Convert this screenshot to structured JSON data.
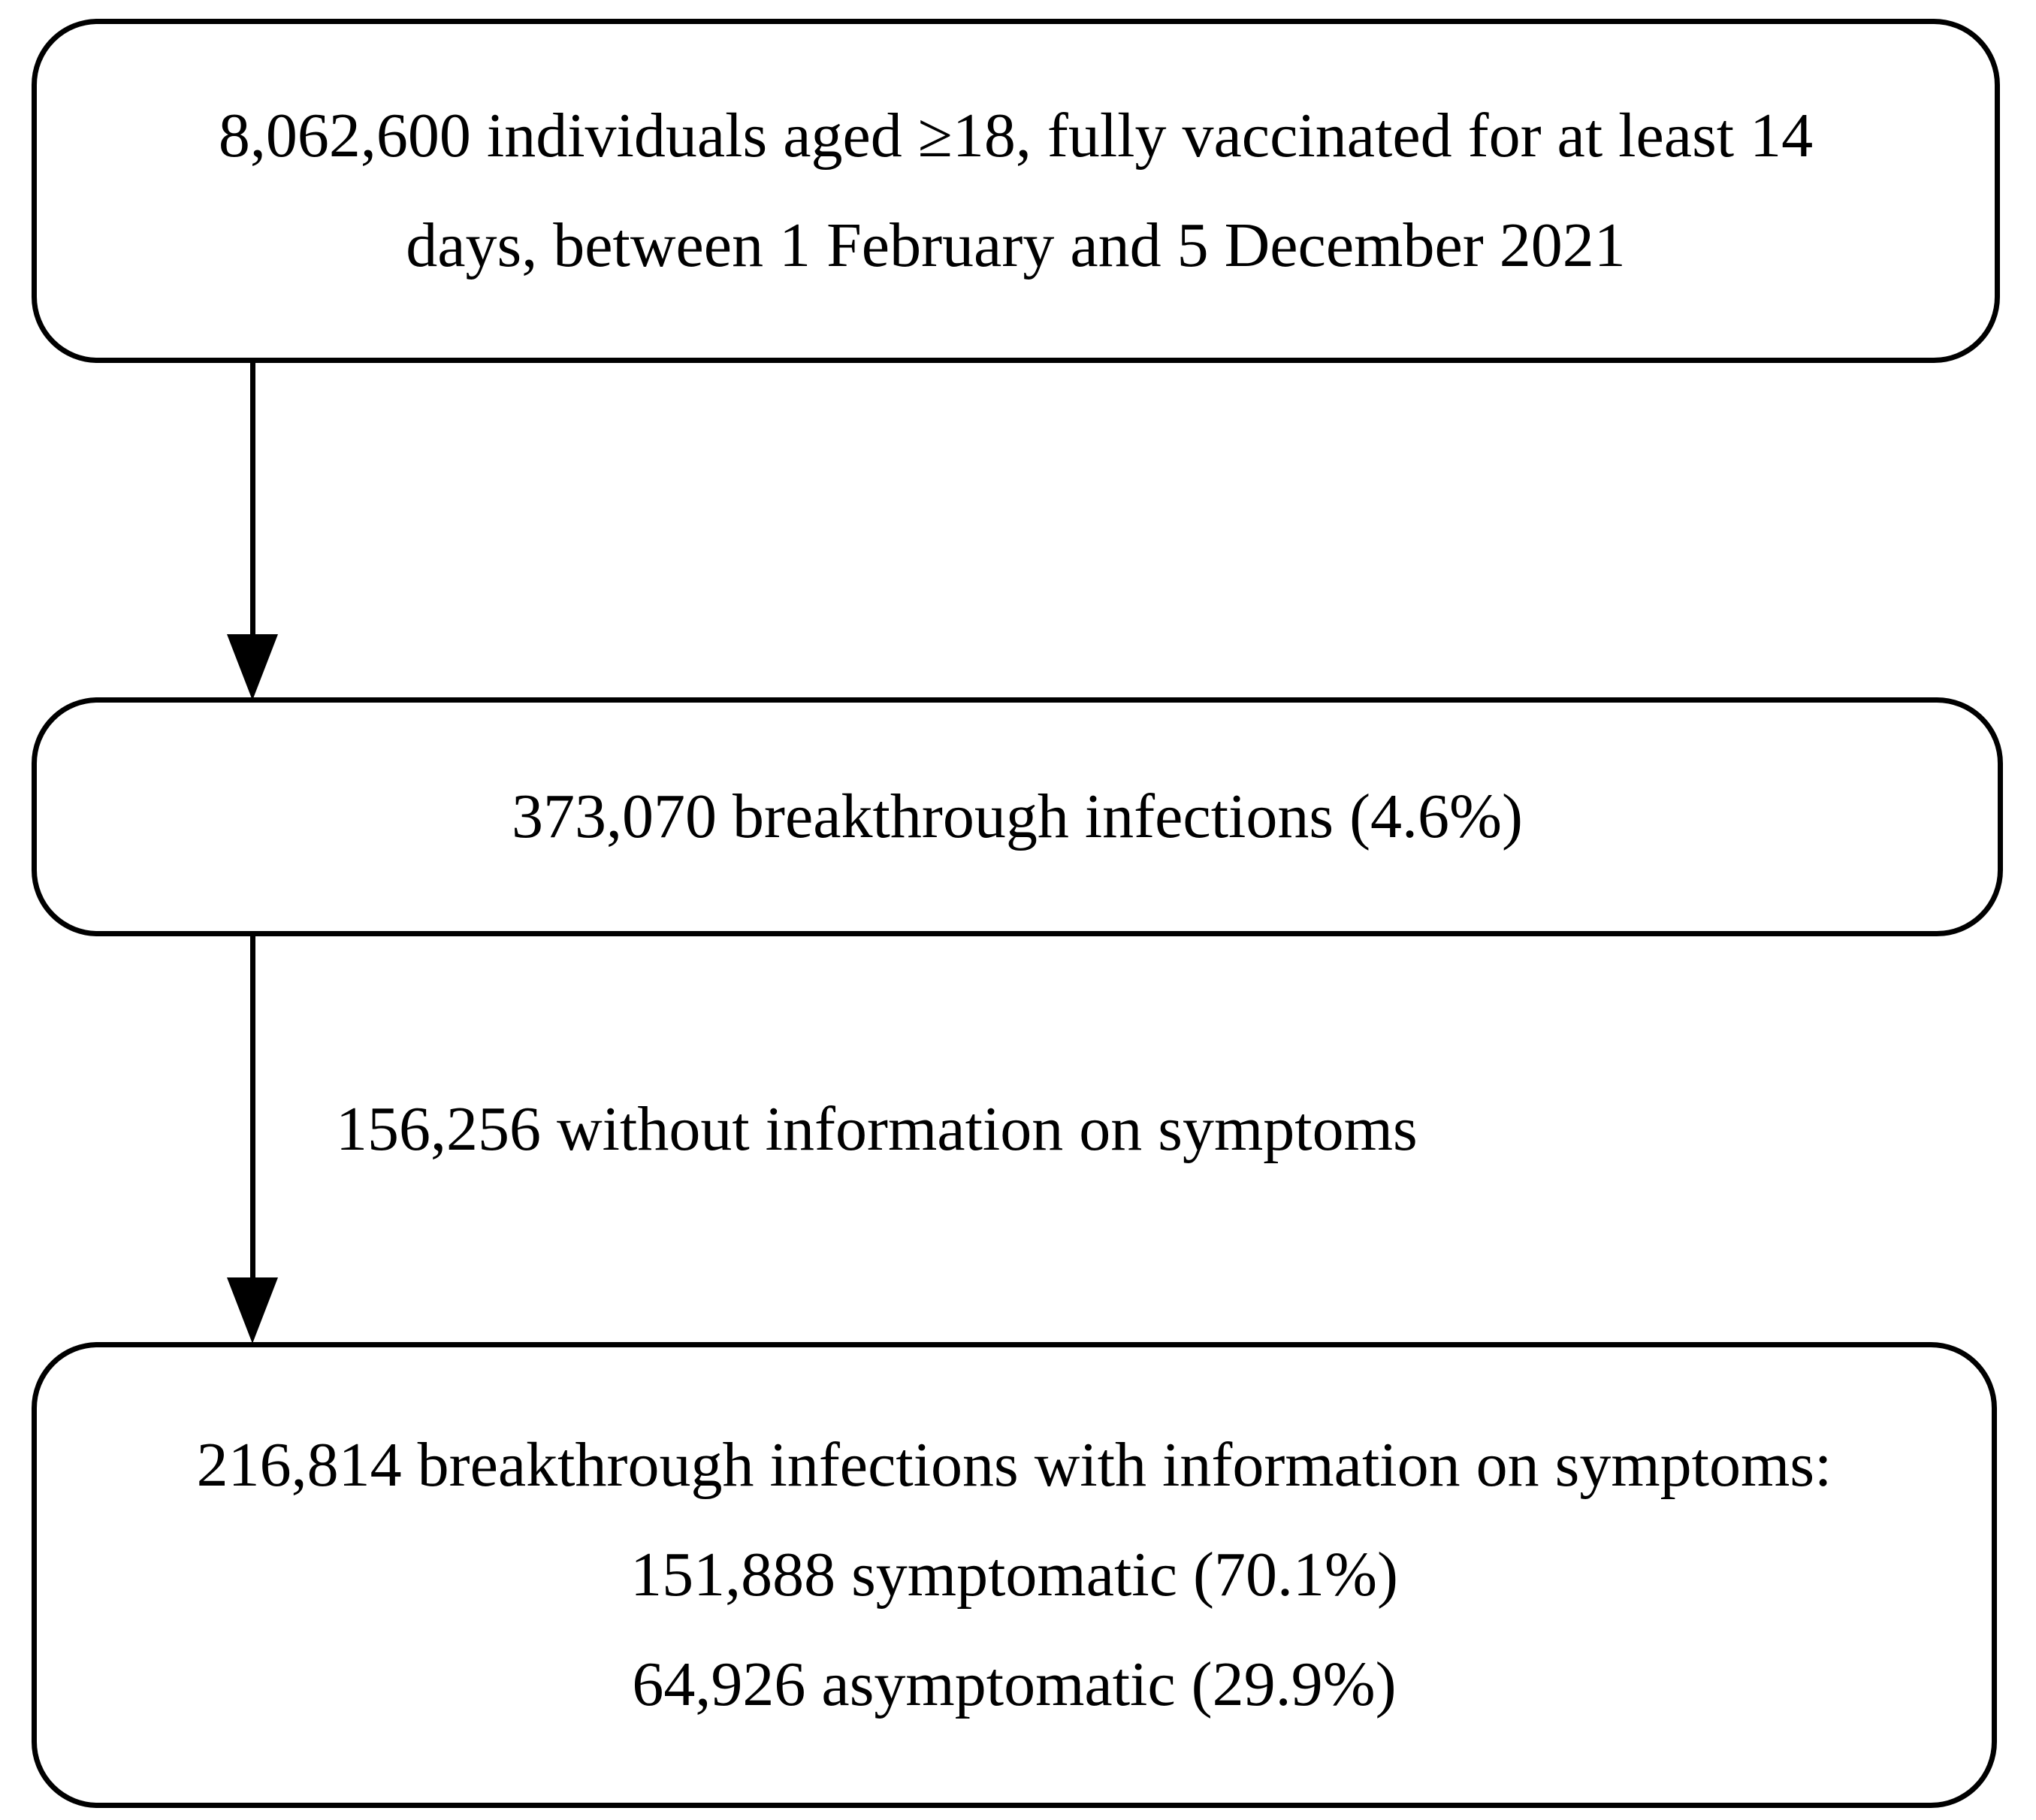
{
  "figure": {
    "type": "study-population-flowchart",
    "background_color": "#ffffff",
    "line_color": "#000000",
    "text_color": "#000000"
  },
  "boxes": {
    "population": {
      "line1": "8,062,600 individuals aged ≥18, fully vaccinated for at least 14",
      "line2": "days, between 1 February and 5 December 2021"
    },
    "breakthrough": {
      "line1": "373,070 breakthrough infections (4.6%)"
    },
    "symptoms": {
      "line1": "216,814 breakthrough infections with information on symptoms:",
      "line2": "151,888 symptomatic (70.1%)",
      "line3": "64,926 asymptomatic (29.9%)"
    }
  },
  "arrow_labels": {
    "excluded": "156,256 without information on symptoms"
  }
}
